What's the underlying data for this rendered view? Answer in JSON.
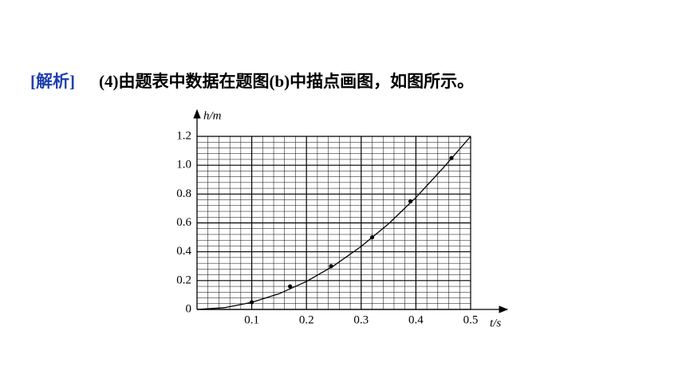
{
  "heading": {
    "tag": "[解析]",
    "text": "(4)由题表中数据在题图(b)中描点画图，如图所示。"
  },
  "chart_data": {
    "type": "scatter",
    "x_label": "t/s",
    "y_label": "h/m",
    "x": [
      0.1,
      0.17,
      0.245,
      0.32,
      0.39,
      0.465
    ],
    "values": [
      0.05,
      0.16,
      0.3,
      0.5,
      0.75,
      1.05
    ],
    "color": "#000000",
    "curve": {
      "x": [
        0,
        0.05,
        0.1,
        0.15,
        0.2,
        0.25,
        0.3,
        0.35,
        0.4,
        0.45,
        0.5
      ],
      "y": [
        0,
        0.012,
        0.049,
        0.109,
        0.194,
        0.303,
        0.437,
        0.594,
        0.776,
        0.982,
        1.2
      ]
    },
    "xlim": [
      0,
      0.5
    ],
    "ylim": [
      0,
      1.2
    ],
    "xticks": [
      0.1,
      0.2,
      0.3,
      0.4,
      0.5
    ],
    "yticks": [
      0,
      0.2,
      0.4,
      0.6,
      0.8,
      {
        "value": 1,
        "label": "1.0"
      },
      1.2
    ],
    "grid": true
  }
}
